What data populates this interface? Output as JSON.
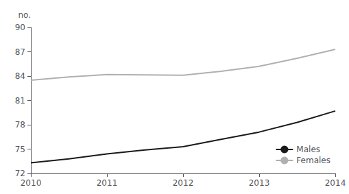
{
  "chart_data": {
    "type": "line",
    "ylabel": "no.",
    "x": [
      2010,
      2010.5,
      2011,
      2011.5,
      2012,
      2012.5,
      2013,
      2013.5,
      2014
    ],
    "series": [
      {
        "name": "Males",
        "color": "#1a1a1a",
        "values": [
          73.3,
          73.8,
          74.4,
          74.9,
          75.3,
          76.2,
          77.1,
          78.3,
          79.7
        ]
      },
      {
        "name": "Females",
        "color": "#b0b0b0",
        "values": [
          83.5,
          83.9,
          84.2,
          84.15,
          84.1,
          84.6,
          85.2,
          86.2,
          87.3
        ]
      }
    ],
    "xlim": [
      2010,
      2014
    ],
    "xticks": [
      2010,
      2011,
      2012,
      2013,
      2014
    ],
    "ylim": [
      72,
      90
    ],
    "yticks": [
      72,
      75,
      78,
      81,
      84,
      87,
      90
    ],
    "grid": false,
    "legend": "lower right"
  }
}
